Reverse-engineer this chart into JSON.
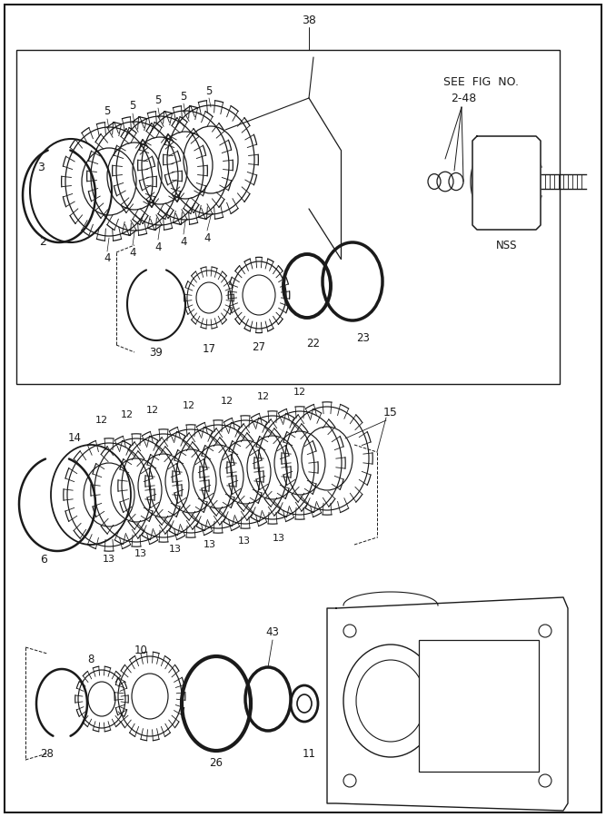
{
  "bg_color": "#ffffff",
  "line_color": "#1a1a1a",
  "fig_width": 6.67,
  "fig_height": 9.0,
  "dpi": 100
}
